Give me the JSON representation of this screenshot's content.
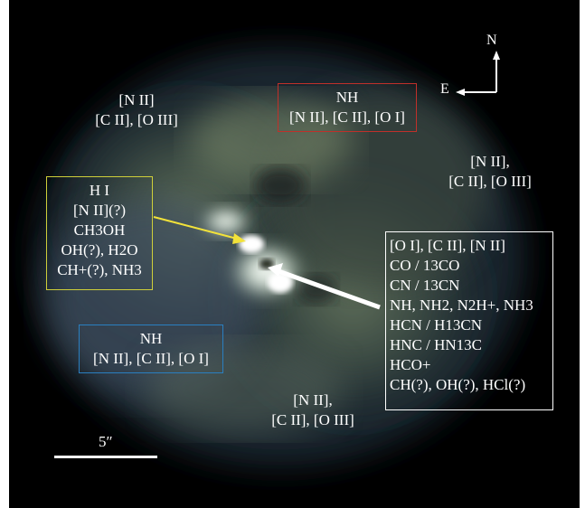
{
  "colors": {
    "background": "#000000",
    "red_box": "#c0302a",
    "yellow_box": "#cfcf3a",
    "blue_box": "#2a7fc0",
    "white_box": "#ffffff",
    "yellow_arrow": "#f2e23a",
    "white_arrow": "#ffffff"
  },
  "compass": {
    "north": "N",
    "east": "E"
  },
  "scale_bar": {
    "label": "5″"
  },
  "labels": {
    "top_left": {
      "line1": "[N II]",
      "line2": "[C II], [O III]"
    },
    "right_mid": {
      "line1": "[N II],",
      "line2": "[C II], [O III]"
    },
    "bottom_center": {
      "line1": "[N II],",
      "line2": "[C II], [O III]"
    }
  },
  "boxes": {
    "red": {
      "lines": [
        "NH",
        "[N II], [C II], [O I]"
      ]
    },
    "blue": {
      "lines": [
        "NH",
        "[N II], [C II], [O I]"
      ]
    },
    "yellow": {
      "lines": [
        "H I",
        "[N II](?)",
        "CH3OH",
        "OH(?), H2O",
        "CH+(?), NH3"
      ]
    },
    "white": {
      "lines": [
        "[O I], [C II], [N II]",
        "CO / 13CO",
        "CN / 13CN",
        "NH, NH2, N2H+, NH3",
        "HCN / H13CN",
        "HNC / HN13C",
        "HCO+",
        "CH(?), OH(?), HCl(?)"
      ]
    }
  },
  "icons": {
    "compass": "compass-arrows-icon",
    "yellow_pointer": "arrow-icon",
    "white_pointer": "arrow-icon"
  }
}
